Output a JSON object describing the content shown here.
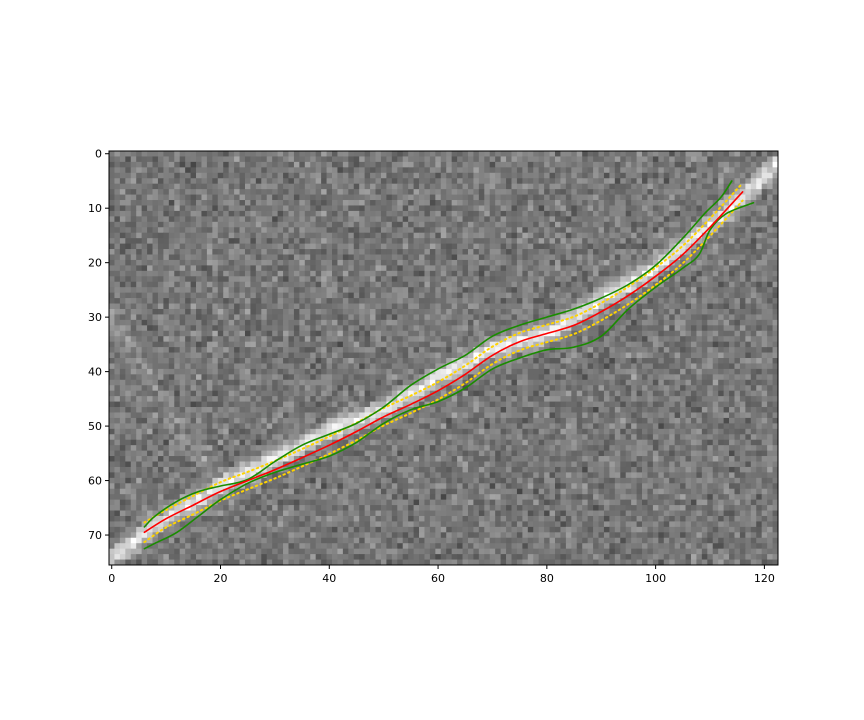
{
  "chart_data": {
    "type": "heatmap",
    "title": "",
    "xlabel": "",
    "ylabel": "",
    "image_size": [
      123,
      76
    ],
    "xlim": [
      -0.5,
      122.5
    ],
    "ylim": [
      75.5,
      -0.5
    ],
    "y_inverted": true,
    "colormap": "gray",
    "xticks": [
      0,
      20,
      40,
      60,
      80,
      100,
      120
    ],
    "yticks": [
      0,
      10,
      20,
      30,
      40,
      50,
      60,
      70
    ],
    "grid": false,
    "legend": "none",
    "bright_streak": {
      "x": [
        0,
        10,
        20,
        30,
        40,
        50,
        60,
        70,
        80,
        90,
        100,
        110,
        116,
        122
      ],
      "y": [
        74,
        67,
        61,
        56,
        51,
        47,
        41,
        36,
        33,
        27,
        21,
        13,
        8,
        2
      ]
    },
    "series": [
      {
        "color": "#ff0000",
        "style": "solid",
        "x": [
          6,
          10,
          15,
          20,
          25,
          30,
          35,
          40,
          45,
          50,
          55,
          60,
          65,
          70,
          75,
          80,
          85,
          90,
          95,
          100,
          105,
          110,
          116
        ],
        "y": [
          69.5,
          67,
          64.5,
          62,
          60,
          58,
          55.8,
          53.5,
          51,
          48.3,
          46,
          43.5,
          40.5,
          37,
          34.5,
          33,
          31.5,
          29,
          26,
          22.5,
          18.5,
          13.5,
          7
        ]
      },
      {
        "color": "#1a8c00",
        "style": "solid",
        "x": [
          6,
          8,
          12,
          16,
          20,
          25,
          30,
          35,
          40,
          45,
          50,
          55,
          60,
          65,
          70,
          75,
          80,
          85,
          90,
          95,
          100,
          105,
          109,
          112,
          114
        ],
        "y": [
          68.5,
          66.5,
          63.8,
          62,
          61,
          59.8,
          56.5,
          53.5,
          51.5,
          49.5,
          46.5,
          42.5,
          39.5,
          37,
          33.5,
          31.5,
          30,
          28.5,
          26.5,
          24,
          20.5,
          15.5,
          11,
          8,
          5
        ]
      },
      {
        "color": "#1a8c00",
        "style": "solid",
        "x": [
          6,
          8,
          12,
          16,
          20,
          25,
          30,
          35,
          40,
          45,
          50,
          55,
          60,
          65,
          70,
          75,
          80,
          85,
          90,
          95,
          100,
          105,
          108,
          110,
          113,
          118
        ],
        "y": [
          72.5,
          71.5,
          69.5,
          66.5,
          63.5,
          60.5,
          58.5,
          57,
          55.5,
          53,
          49.5,
          47,
          45.5,
          43,
          39.5,
          37.5,
          36,
          35.5,
          33.5,
          28.5,
          24.5,
          21,
          18.5,
          14,
          11,
          9
        ]
      },
      {
        "color": "#ffd400",
        "style": "dotted",
        "x": [
          6,
          10,
          15,
          20,
          25,
          30,
          35,
          40,
          45,
          50,
          55,
          60,
          65,
          70,
          75,
          80,
          85,
          90,
          95,
          100,
          105,
          110,
          116
        ],
        "y": [
          71.3,
          68.6,
          66.2,
          63.7,
          61.6,
          59.6,
          57.4,
          55.1,
          52.6,
          49.9,
          47.6,
          45.1,
          42.1,
          38.6,
          36.1,
          34.6,
          33.1,
          30.6,
          27.6,
          24.1,
          20.1,
          15.1,
          8.6
        ]
      },
      {
        "color": "#ffd400",
        "style": "dotted",
        "x": [
          6,
          10,
          15,
          20,
          25,
          30,
          35,
          40,
          45,
          50,
          55,
          60,
          65,
          70,
          75,
          80,
          85,
          90,
          95,
          100,
          105,
          110,
          116
        ],
        "y": [
          67.7,
          65.4,
          62.8,
          60.3,
          58.4,
          56.4,
          54.2,
          51.9,
          49.4,
          46.7,
          44.4,
          41.9,
          38.9,
          35.4,
          32.9,
          31.4,
          29.9,
          27.4,
          24.4,
          20.9,
          16.9,
          11.9,
          5.4
        ]
      }
    ]
  }
}
